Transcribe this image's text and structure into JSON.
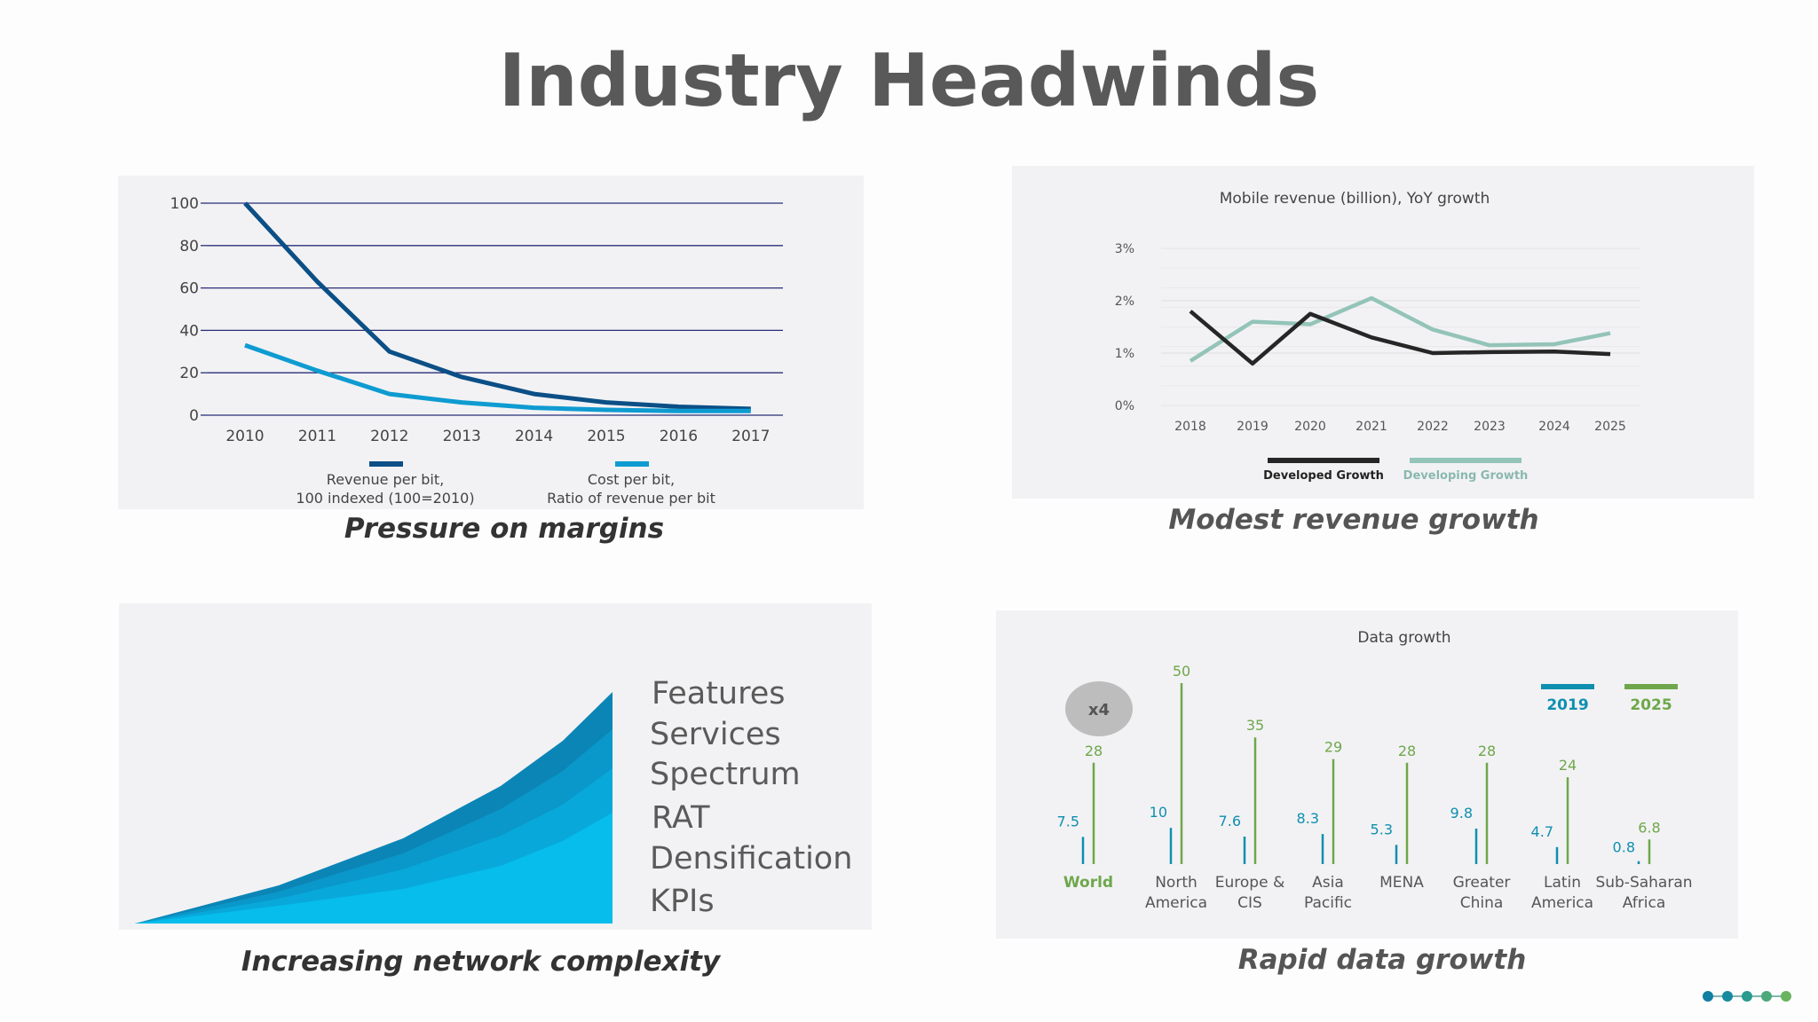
{
  "page": {
    "title": "Industry Headwinds",
    "captions": {
      "margins": "Pressure on margins",
      "revenue": "Modest revenue growth",
      "complexity": "Increasing network complexity",
      "data": "Rapid data growth"
    },
    "colors": {
      "revenue_per_bit": "#0b4f86",
      "cost_per_bit": "#0e9bd1",
      "developed": "#262626",
      "developing": "#93c4b7",
      "y2019": "#0f8fb0",
      "y2025": "#6ea74b",
      "complexity_layers": [
        "#0b85b6",
        "#0a97c9",
        "#08a9da",
        "#06bdec"
      ]
    },
    "complexity_labels": [
      "Features",
      "Services",
      "Spectrum",
      "RAT",
      "Densification",
      "KPIs"
    ],
    "nav_dots": 5
  },
  "chart_data": [
    {
      "type": "line",
      "title": "",
      "x": [
        "2010",
        "2011",
        "2012",
        "2013",
        "2014",
        "2015",
        "2016",
        "2017"
      ],
      "series": [
        {
          "name": "Revenue per bit, 100 indexed (100=2010)",
          "values": [
            100,
            63,
            30,
            18,
            10,
            6,
            4,
            3
          ]
        },
        {
          "name": "Cost per bit, Ratio of revenue per bit",
          "values": [
            33,
            21,
            10,
            6,
            3.5,
            2.5,
            2,
            2
          ]
        }
      ],
      "legend_lines": [
        [
          "Revenue per bit,",
          "100 indexed (100=2010)"
        ],
        [
          "Cost per bit,",
          "Ratio of revenue per bit"
        ]
      ],
      "yticks": [
        "0",
        "20",
        "40",
        "60",
        "80",
        "100"
      ],
      "ylim": [
        0,
        100
      ],
      "grid": true,
      "legend": "bottom"
    },
    {
      "type": "line",
      "title": "Mobile revenue (billion), YoY growth",
      "x": [
        "2018",
        "2019",
        "2020",
        "2021",
        "2022",
        "2023",
        "2024",
        "2025"
      ],
      "series": [
        {
          "name": "Developed Growth",
          "values": [
            1.8,
            0.8,
            1.75,
            1.3,
            1.0,
            1.02,
            1.03,
            0.98
          ]
        },
        {
          "name": "Developing Growth",
          "values": [
            0.85,
            1.6,
            1.55,
            2.05,
            1.45,
            1.15,
            1.17,
            1.38
          ]
        }
      ],
      "yticks": [
        "0%",
        "1%",
        "2%",
        "3%"
      ],
      "ylim": [
        0,
        3
      ],
      "grid": true,
      "legend": "bottom"
    },
    {
      "type": "bar",
      "title": "Data growth",
      "categories": [
        [
          "World"
        ],
        [
          "North",
          "America"
        ],
        [
          "Europe &",
          "CIS"
        ],
        [
          "Asia",
          "Pacific"
        ],
        [
          "MENA"
        ],
        [
          "Greater",
          "China"
        ],
        [
          "Latin",
          "America"
        ],
        [
          "Sub-Saharan",
          "Africa"
        ]
      ],
      "series": [
        {
          "name": "2019",
          "values": [
            7.5,
            10,
            7.6,
            8.3,
            5.3,
            9.8,
            4.7,
            0.8
          ]
        },
        {
          "name": "2025",
          "values": [
            28,
            50,
            35,
            29,
            28,
            28,
            24,
            6.8
          ]
        }
      ],
      "annotation": "x4",
      "legend": "top-right"
    }
  ]
}
